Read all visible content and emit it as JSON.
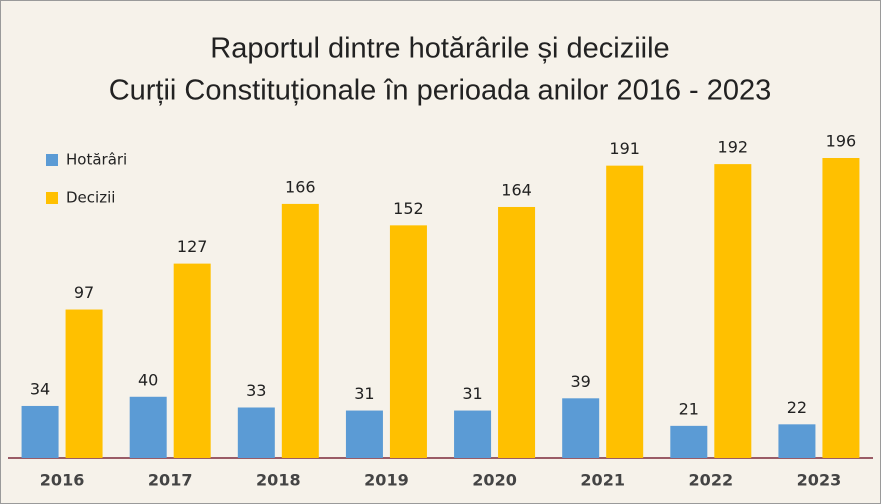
{
  "chart_data": {
    "type": "bar",
    "title": [
      "Raportul dintre hotărârile și deciziile",
      "Curții Constituționale în perioada anilor 2016 - 2023"
    ],
    "categories": [
      "2016",
      "2017",
      "2018",
      "2019",
      "2020",
      "2021",
      "2022",
      "2023"
    ],
    "series": [
      {
        "name": "Hotărâri",
        "color": "#5b9bd5",
        "values": [
          34,
          40,
          33,
          31,
          31,
          39,
          21,
          22
        ]
      },
      {
        "name": "Decizii",
        "color": "#ffc000",
        "values": [
          97,
          127,
          166,
          152,
          164,
          191,
          192,
          196
        ]
      }
    ],
    "legend": "top-left"
  }
}
